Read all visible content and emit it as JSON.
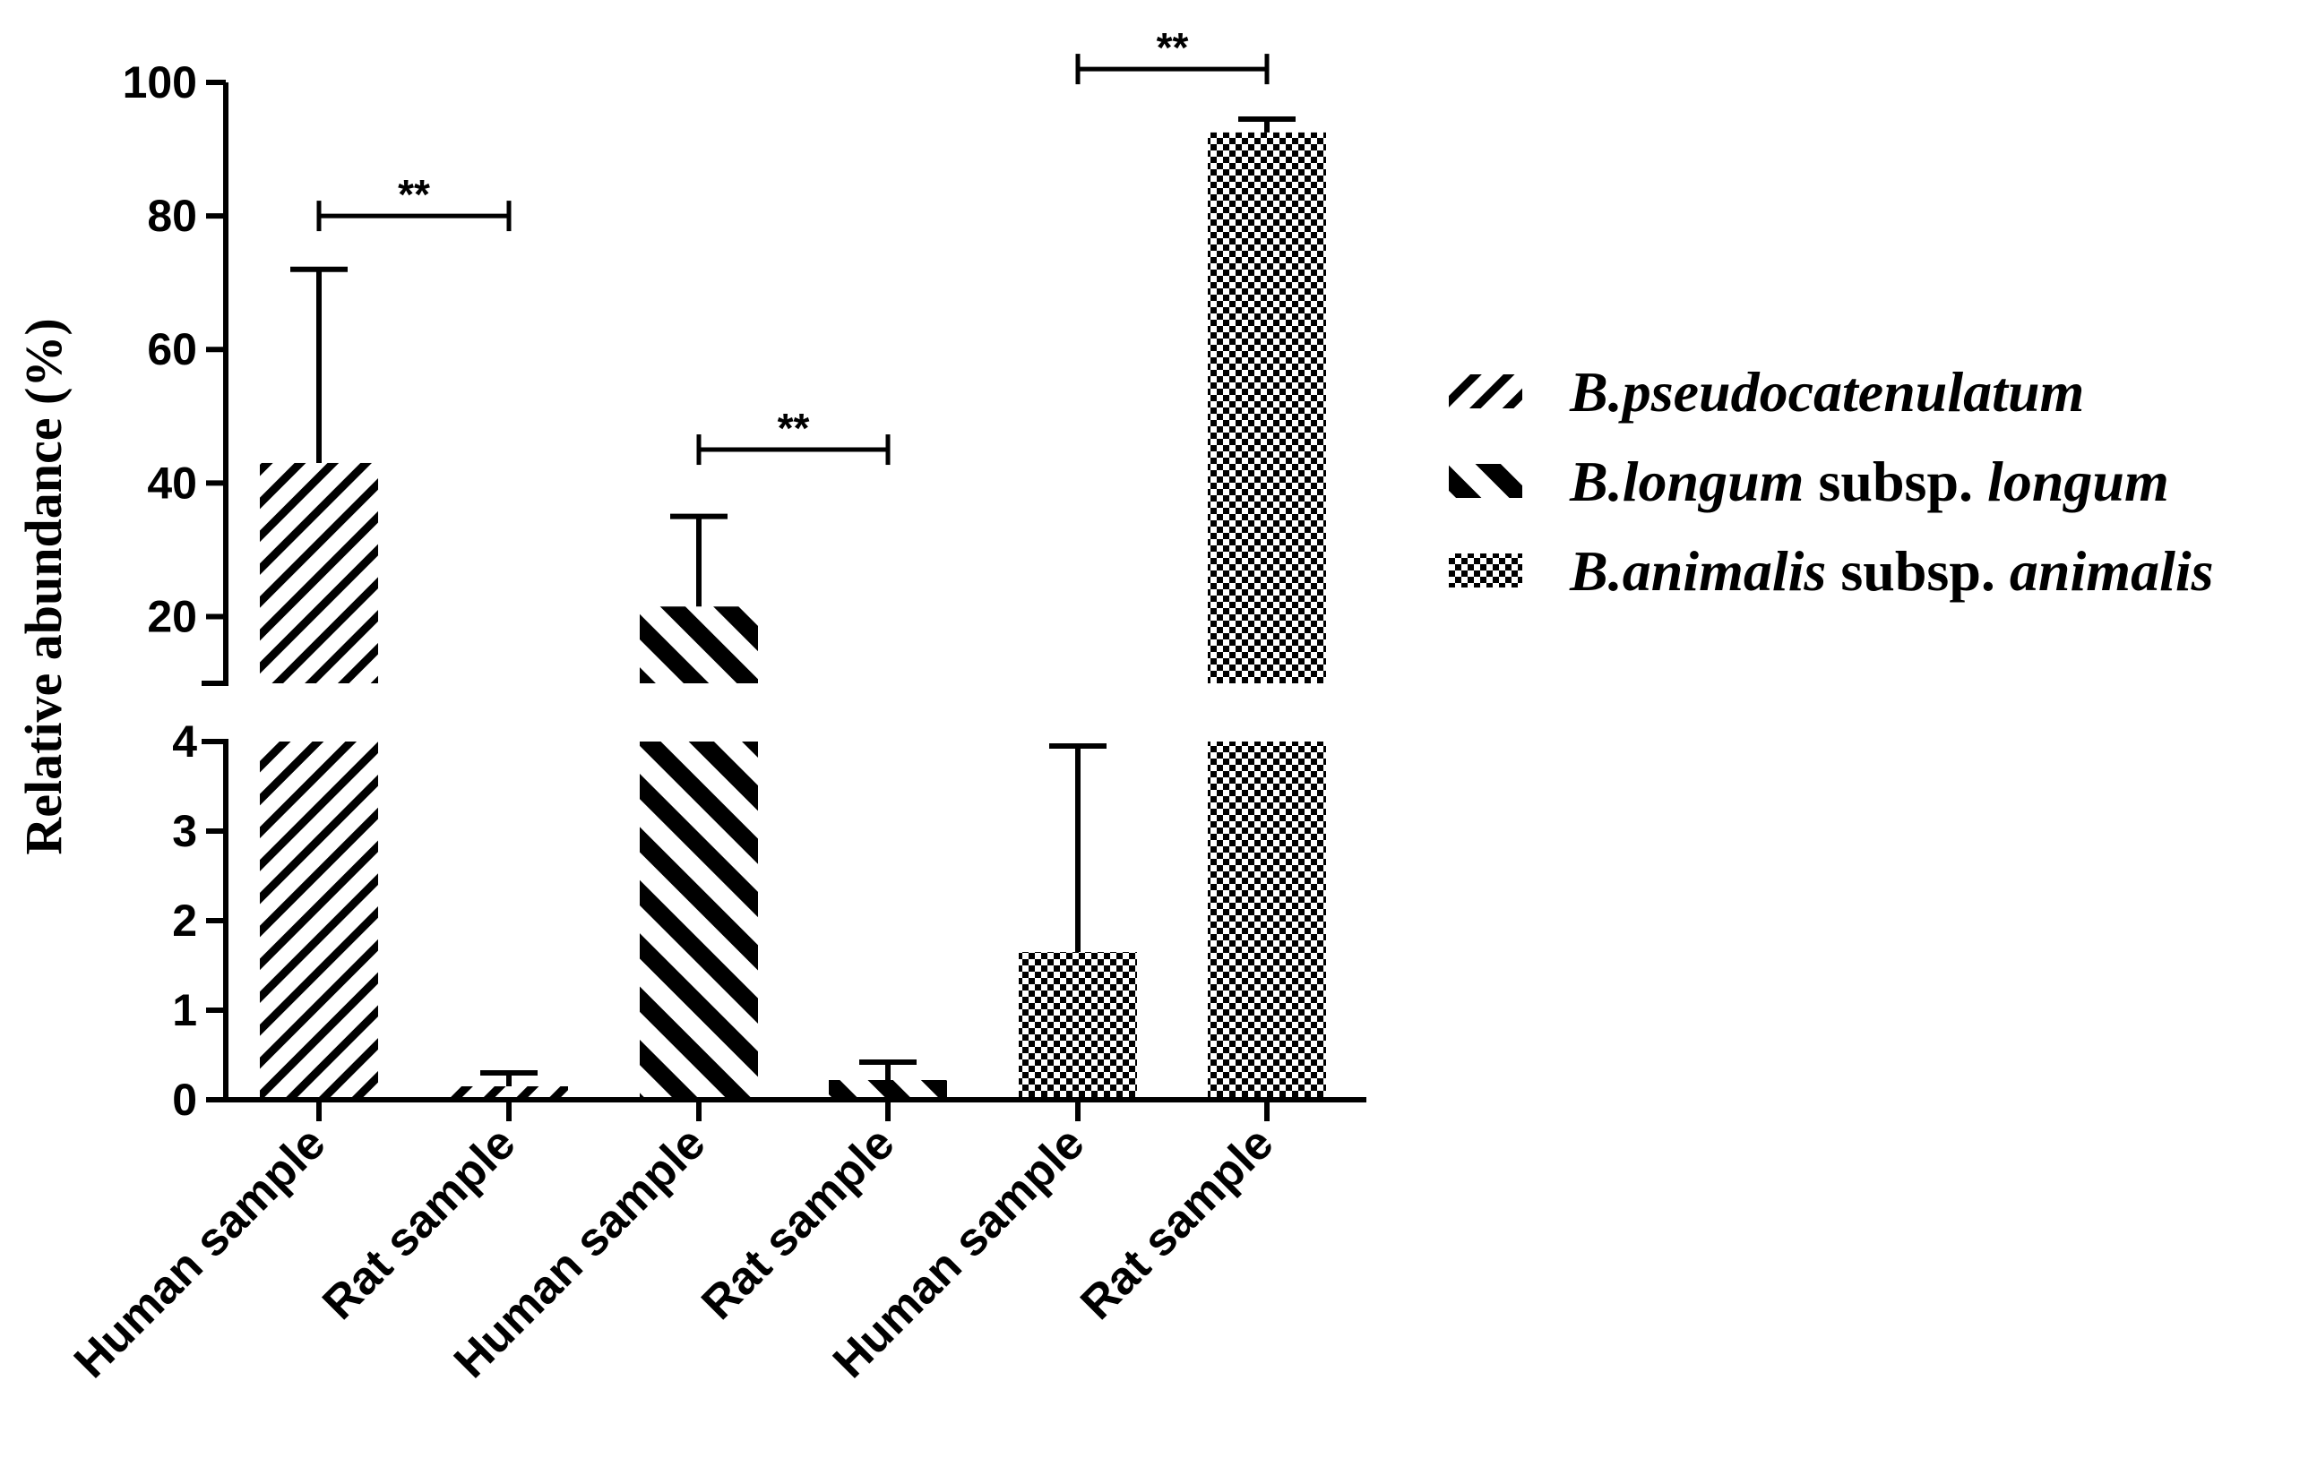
{
  "chart_data": {
    "type": "bar",
    "title": "",
    "xlabel": "",
    "ylabel": "Relative abundance (%)",
    "broken_y_axis": true,
    "lower_segment": {
      "ylim": [
        0,
        4
      ],
      "ticks": [
        0,
        1,
        2,
        3,
        4
      ]
    },
    "upper_segment": {
      "ylim": [
        10,
        100
      ],
      "ticks": [
        20,
        40,
        60,
        80,
        100
      ]
    },
    "categories": [
      "Human sample",
      "Rat sample",
      "Human sample",
      "Rat sample",
      "Human sample",
      "Rat sample"
    ],
    "bars": [
      {
        "category": "Human sample",
        "series": "B.pseudocatenulatum",
        "value": 43,
        "error": 72,
        "pattern": "fine-stripe"
      },
      {
        "category": "Rat sample",
        "series": "B.pseudocatenulatum",
        "value": 0.15,
        "error": 0.3,
        "pattern": "fine-stripe"
      },
      {
        "category": "Human sample",
        "series": "B.longum subsp. longum",
        "value": 21.5,
        "error": 35,
        "pattern": "wide-stripe"
      },
      {
        "category": "Rat sample",
        "series": "B.longum subsp. longum",
        "value": 0.22,
        "error": 0.42,
        "pattern": "wide-stripe"
      },
      {
        "category": "Human sample",
        "series": "B.animalis subsp. animalis",
        "value": 1.65,
        "error": 3.95,
        "pattern": "checker"
      },
      {
        "category": "Rat sample",
        "series": "B.animalis subsp. animalis",
        "value": 92.5,
        "error": 94.5,
        "pattern": "checker"
      }
    ],
    "significance": [
      {
        "label": "**",
        "from_bar": 0,
        "to_bar": 1,
        "y": 80
      },
      {
        "label": "**",
        "from_bar": 2,
        "to_bar": 3,
        "y": 45
      },
      {
        "label": "**",
        "from_bar": 4,
        "to_bar": 5,
        "y": 102
      }
    ],
    "legend": {
      "position": "right",
      "entries": [
        {
          "pattern": "fine-stripe",
          "parts": [
            {
              "text": "B.pseudocatenulatum",
              "italic": true
            }
          ]
        },
        {
          "pattern": "wide-stripe",
          "parts": [
            {
              "text": "B.longum",
              "italic": true
            },
            {
              "text": " subsp. ",
              "italic": false
            },
            {
              "text": "longum",
              "italic": true
            }
          ]
        },
        {
          "pattern": "checker",
          "parts": [
            {
              "text": "B.animalis",
              "italic": true
            },
            {
              "text": " subsp. ",
              "italic": false
            },
            {
              "text": "animalis",
              "italic": true
            }
          ]
        }
      ]
    }
  }
}
